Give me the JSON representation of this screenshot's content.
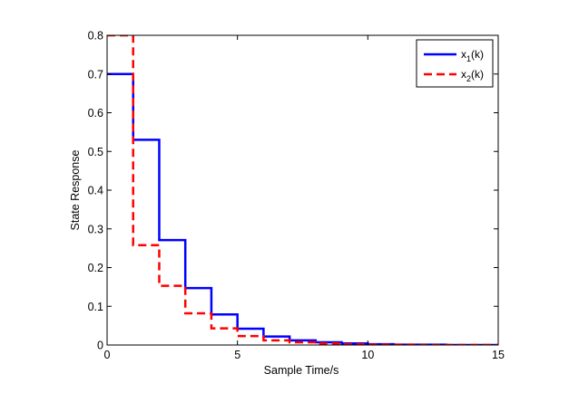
{
  "chart_data": {
    "type": "line",
    "step": true,
    "title": "",
    "xlabel": "Sample Time/s",
    "ylabel": "State Response",
    "xlim": [
      0,
      15
    ],
    "ylim": [
      0,
      0.8
    ],
    "xticks": [
      0,
      5,
      10,
      15
    ],
    "xtick_labels": [
      "0",
      "5",
      "10",
      "15"
    ],
    "yticks": [
      0,
      0.1,
      0.2,
      0.3,
      0.4,
      0.5,
      0.6,
      0.7,
      0.8
    ],
    "ytick_labels": [
      "0",
      "0.1",
      "0.2",
      "0.3",
      "0.4",
      "0.5",
      "0.6",
      "0.7",
      "0.8"
    ],
    "grid": false,
    "legend_position": "top-right",
    "series": [
      {
        "name": "x1(k)",
        "legend_base": "x",
        "legend_sub": "1",
        "legend_suffix": "(k)",
        "color": "#0000ff",
        "dash": "solid",
        "x": [
          0,
          1,
          2,
          3,
          4,
          5,
          6,
          7,
          8,
          9,
          10,
          11,
          12,
          13,
          14,
          15
        ],
        "values": [
          0.7,
          0.53,
          0.271,
          0.147,
          0.079,
          0.042,
          0.022,
          0.012,
          0.007,
          0.004,
          0.002,
          0.001,
          0.001,
          0.0,
          0.0,
          0.0
        ]
      },
      {
        "name": "x2(k)",
        "legend_base": "x",
        "legend_sub": "2",
        "legend_suffix": "(k)",
        "color": "#ff0000",
        "dash": "dashed",
        "x": [
          0,
          1,
          2,
          3,
          4,
          5,
          6,
          7,
          8,
          9,
          10,
          11,
          12,
          13,
          14,
          15
        ],
        "values": [
          0.8,
          0.258,
          0.153,
          0.082,
          0.043,
          0.023,
          0.012,
          0.007,
          0.004,
          0.002,
          0.001,
          0.001,
          0.0,
          0.0,
          0.0,
          0.0
        ]
      }
    ]
  }
}
